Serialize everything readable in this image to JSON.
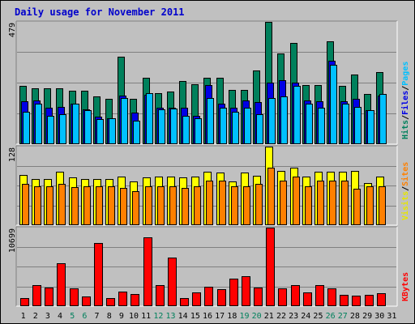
{
  "title": "Daily usage for November 2011",
  "colors": {
    "hits": "#00805c",
    "files": "#0000e6",
    "pages": "#00c0ff",
    "visits": "#ffff00",
    "sites": "#ff8000",
    "kbytes": "#ff0000",
    "weekend_day": "#00805c",
    "weekday": "#000000",
    "title": "#0000cc"
  },
  "right_labels": {
    "top": [
      {
        "text": "Hits",
        "color": "#00805c"
      },
      {
        "text": "/",
        "color": "#000000"
      },
      {
        "text": "Files",
        "color": "#0000e6"
      },
      {
        "text": "/",
        "color": "#000000"
      },
      {
        "text": "Pages",
        "color": "#00c0ff"
      }
    ],
    "middle": [
      {
        "text": "Visits",
        "color": "#e6e600"
      },
      {
        "text": "/",
        "color": "#000000"
      },
      {
        "text": "Sites",
        "color": "#ff8000"
      }
    ],
    "bottom": [
      {
        "text": "KBytes",
        "color": "#ff0000"
      }
    ]
  },
  "chart_data": [
    {
      "type": "bar",
      "panel": "hits-files-pages",
      "y_max_label": "479",
      "ylim": [
        0,
        479
      ],
      "categories": [
        "1",
        "2",
        "3",
        "4",
        "5",
        "6",
        "7",
        "8",
        "9",
        "10",
        "11",
        "12",
        "13",
        "14",
        "15",
        "16",
        "17",
        "18",
        "19",
        "20",
        "21",
        "22",
        "23",
        "24",
        "25",
        "26",
        "27",
        "28",
        "29",
        "30",
        "31"
      ],
      "weekend_days": [
        "5",
        "6",
        "12",
        "13",
        "19",
        "20",
        "26",
        "27"
      ],
      "series": [
        {
          "name": "Hits",
          "values": [
            226,
            218,
            217,
            217,
            208,
            206,
            186,
            176,
            341,
            175,
            258,
            198,
            203,
            245,
            232,
            258,
            258,
            210,
            210,
            286,
            479,
            356,
            395,
            230,
            229,
            403,
            228,
            273,
            196,
            282,
            0
          ]
        },
        {
          "name": "Files",
          "values": [
            166,
            170,
            140,
            145,
            155,
            133,
            105,
            98,
            190,
            120,
            192,
            142,
            140,
            140,
            110,
            230,
            155,
            142,
            170,
            163,
            240,
            250,
            240,
            170,
            165,
            325,
            165,
            175,
            130,
            187,
            0
          ]
        },
        {
          "name": "Pages",
          "values": [
            125,
            155,
            110,
            115,
            158,
            130,
            95,
            100,
            180,
            90,
            198,
            135,
            138,
            110,
            100,
            180,
            140,
            125,
            140,
            115,
            180,
            185,
            228,
            155,
            140,
            310,
            155,
            145,
            130,
            195,
            0
          ]
        }
      ]
    },
    {
      "type": "bar",
      "panel": "visits-sites",
      "y_max_label": "128",
      "ylim": [
        0,
        128
      ],
      "categories": [
        "1",
        "2",
        "3",
        "4",
        "5",
        "6",
        "7",
        "8",
        "9",
        "10",
        "11",
        "12",
        "13",
        "14",
        "15",
        "16",
        "17",
        "18",
        "19",
        "20",
        "21",
        "22",
        "23",
        "24",
        "25",
        "26",
        "27",
        "28",
        "29",
        "30",
        "31"
      ],
      "series": [
        {
          "name": "Visits",
          "values": [
            81,
            75,
            75,
            87,
            77,
            75,
            74,
            75,
            79,
            70,
            77,
            78,
            78,
            77,
            79,
            86,
            85,
            70,
            85,
            80,
            128,
            88,
            93,
            78,
            87,
            87,
            87,
            88,
            68,
            79,
            0
          ]
        },
        {
          "name": "Sites",
          "values": [
            67,
            62,
            62,
            67,
            61,
            62,
            62,
            62,
            60,
            55,
            62,
            62,
            62,
            60,
            62,
            72,
            72,
            62,
            62,
            67,
            93,
            72,
            78,
            62,
            72,
            72,
            72,
            58,
            62,
            62,
            0
          ]
        }
      ]
    },
    {
      "type": "bar",
      "panel": "kbytes",
      "y_max_label": "10699",
      "ylim": [
        0,
        10699
      ],
      "categories": [
        "1",
        "2",
        "3",
        "4",
        "5",
        "6",
        "7",
        "8",
        "9",
        "10",
        "11",
        "12",
        "13",
        "14",
        "15",
        "16",
        "17",
        "18",
        "19",
        "20",
        "21",
        "22",
        "23",
        "24",
        "25",
        "26",
        "27",
        "28",
        "29",
        "30",
        "31"
      ],
      "series": [
        {
          "name": "KBytes",
          "values": [
            1000,
            2800,
            2400,
            5800,
            2300,
            1200,
            8600,
            1000,
            1900,
            1600,
            9400,
            2800,
            6600,
            1000,
            1800,
            2600,
            2200,
            3700,
            4000,
            2500,
            10699,
            2300,
            2800,
            1800,
            2800,
            2300,
            1500,
            1300,
            1400,
            1700,
            0
          ]
        }
      ]
    }
  ]
}
